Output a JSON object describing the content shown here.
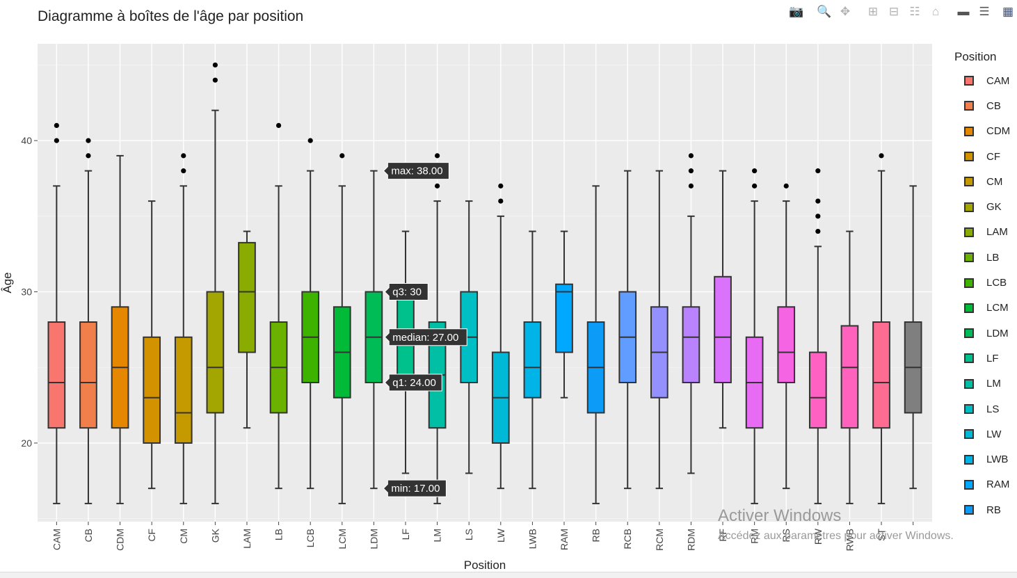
{
  "title": "Diagramme à boîtes de l'âge par position",
  "modebar": {
    "icons": [
      "camera-icon",
      "zoom-icon",
      "pan-icon",
      "zoom-in-icon",
      "zoom-out-icon",
      "autoscale-icon",
      "reset-axes-icon",
      "toggle-spike-icon",
      "compare-hover-icon",
      "plotly-logo-icon"
    ]
  },
  "watermark": {
    "line1": "Activer Windows",
    "line2": "Accédez aux paramètres pour activer Windows."
  },
  "legend": {
    "title": "Position",
    "items": [
      {
        "label": "CAM",
        "color": "#F8766D"
      },
      {
        "label": "CB",
        "color": "#F07F4C"
      },
      {
        "label": "CDM",
        "color": "#E58700"
      },
      {
        "label": "CF",
        "color": "#D39200"
      },
      {
        "label": "CM",
        "color": "#C49A00"
      },
      {
        "label": "GK",
        "color": "#A3A500"
      },
      {
        "label": "LAM",
        "color": "#8AAB00"
      },
      {
        "label": "LB",
        "color": "#6BB100"
      },
      {
        "label": "LCB",
        "color": "#3DB300"
      },
      {
        "label": "LCM",
        "color": "#00BA38"
      },
      {
        "label": "LDM",
        "color": "#00BC56"
      },
      {
        "label": "LF",
        "color": "#00C08B"
      },
      {
        "label": "LM",
        "color": "#00BFA4"
      },
      {
        "label": "LS",
        "color": "#00BFC4"
      },
      {
        "label": "LW",
        "color": "#00B9D7"
      },
      {
        "label": "LWB",
        "color": "#00B4E8"
      },
      {
        "label": "RAM",
        "color": "#00A9FF"
      },
      {
        "label": "RB",
        "color": "#0D9BF8"
      }
    ]
  },
  "hover": {
    "max": "max: 38.00",
    "q3": "q3: 30",
    "median": "median: 27.00",
    "q1": "q1: 24.00",
    "min": "min: 17.00"
  },
  "chart_data": {
    "type": "box",
    "title": "Diagramme à boîtes de l'âge par position",
    "xlabel": "Position",
    "ylabel": "Âge",
    "ylim": [
      14.8,
      46.4
    ],
    "yticks": [
      20,
      30,
      40
    ],
    "grid": true,
    "legend_position": "right",
    "series": [
      {
        "name": "CAM",
        "color": "#F8766D",
        "min": 16,
        "q1": 21,
        "median": 24,
        "q3": 28,
        "max": 37,
        "outliers": [
          40,
          41
        ]
      },
      {
        "name": "CB",
        "color": "#F07F4C",
        "min": 16,
        "q1": 21,
        "median": 24,
        "q3": 28,
        "max": 38,
        "outliers": [
          39,
          40
        ]
      },
      {
        "name": "CDM",
        "color": "#E58700",
        "min": 16,
        "q1": 21,
        "median": 25,
        "q3": 29,
        "max": 39,
        "outliers": []
      },
      {
        "name": "CF",
        "color": "#D39200",
        "min": 17,
        "q1": 20,
        "median": 23,
        "q3": 27,
        "max": 36,
        "outliers": []
      },
      {
        "name": "CM",
        "color": "#C49A00",
        "min": 16,
        "q1": 20,
        "median": 22,
        "q3": 27,
        "max": 37,
        "outliers": [
          38,
          39
        ]
      },
      {
        "name": "GK",
        "color": "#A3A500",
        "min": 16,
        "q1": 22,
        "median": 25,
        "q3": 30,
        "max": 42,
        "outliers": [
          44,
          45
        ]
      },
      {
        "name": "LAM",
        "color": "#8AAB00",
        "min": 21,
        "q1": 26,
        "median": 30,
        "q3": 33.25,
        "max": 34,
        "outliers": []
      },
      {
        "name": "LB",
        "color": "#6BB100",
        "min": 17,
        "q1": 22,
        "median": 25,
        "q3": 28,
        "max": 37,
        "outliers": [
          41
        ]
      },
      {
        "name": "LCB",
        "color": "#3DB300",
        "min": 17,
        "q1": 24,
        "median": 27,
        "q3": 30,
        "max": 38,
        "outliers": [
          40
        ]
      },
      {
        "name": "LCM",
        "color": "#00BA38",
        "min": 16,
        "q1": 23,
        "median": 26,
        "q3": 29,
        "max": 37,
        "outliers": [
          39
        ]
      },
      {
        "name": "LDM",
        "color": "#00BC56",
        "min": 17,
        "q1": 24,
        "median": 27,
        "q3": 30,
        "max": 38,
        "outliers": []
      },
      {
        "name": "LF",
        "color": "#00C08B",
        "min": 18,
        "q1": 24.5,
        "median": 27,
        "q3": 30,
        "max": 34,
        "outliers": []
      },
      {
        "name": "LM",
        "color": "#00BFA4",
        "min": 16,
        "q1": 21,
        "median": 24.5,
        "q3": 28,
        "max": 36,
        "outliers": [
          37,
          39
        ]
      },
      {
        "name": "LS",
        "color": "#00BFC4",
        "min": 18,
        "q1": 24,
        "median": 27,
        "q3": 30,
        "max": 36,
        "outliers": []
      },
      {
        "name": "LW",
        "color": "#00B9D7",
        "min": 17,
        "q1": 20,
        "median": 23,
        "q3": 26,
        "max": 35,
        "outliers": [
          36,
          37
        ]
      },
      {
        "name": "LWB",
        "color": "#00B4E8",
        "min": 17,
        "q1": 23,
        "median": 25,
        "q3": 28,
        "max": 34,
        "outliers": []
      },
      {
        "name": "RAM",
        "color": "#00A9FF",
        "min": 23,
        "q1": 26,
        "median": 30,
        "q3": 30.5,
        "max": 34,
        "outliers": []
      },
      {
        "name": "RB",
        "color": "#0D9BF8",
        "min": 16,
        "q1": 22,
        "median": 25,
        "q3": 28,
        "max": 37,
        "outliers": []
      },
      {
        "name": "RCB",
        "color": "#619CFF",
        "min": 17,
        "q1": 24,
        "median": 27,
        "q3": 30,
        "max": 38,
        "outliers": []
      },
      {
        "name": "RCM",
        "color": "#9590FF",
        "min": 17,
        "q1": 23,
        "median": 26,
        "q3": 29,
        "max": 38,
        "outliers": []
      },
      {
        "name": "RDM",
        "color": "#B983FF",
        "min": 18,
        "q1": 24,
        "median": 27,
        "q3": 29,
        "max": 35,
        "outliers": [
          37,
          38,
          39
        ]
      },
      {
        "name": "RF",
        "color": "#DB72FB",
        "min": 21,
        "q1": 24,
        "median": 27,
        "q3": 31,
        "max": 38,
        "outliers": []
      },
      {
        "name": "RM",
        "color": "#E76BF3",
        "min": 16,
        "q1": 21,
        "median": 24,
        "q3": 27,
        "max": 36,
        "outliers": [
          37,
          38
        ]
      },
      {
        "name": "RS",
        "color": "#F564E3",
        "min": 17,
        "q1": 24,
        "median": 26,
        "q3": 29,
        "max": 36,
        "outliers": [
          37
        ]
      },
      {
        "name": "RW",
        "color": "#FF61C3",
        "min": 16,
        "q1": 21,
        "median": 23,
        "q3": 26,
        "max": 33,
        "outliers": [
          34,
          35,
          36,
          38
        ]
      },
      {
        "name": "RWB",
        "color": "#FF62BC",
        "min": 16,
        "q1": 21,
        "median": 25,
        "q3": 27.75,
        "max": 34,
        "outliers": []
      },
      {
        "name": "ST",
        "color": "#FF6C91",
        "min": 16,
        "q1": 21,
        "median": 24,
        "q3": 28,
        "max": 38,
        "outliers": [
          39
        ]
      },
      {
        "name": "",
        "color": "#7F7F7F",
        "min": 17,
        "q1": 22,
        "median": 25,
        "q3": 28,
        "max": 37,
        "outliers": []
      }
    ],
    "categories": [
      "CAM",
      "CB",
      "CDM",
      "CF",
      "CM",
      "GK",
      "LAM",
      "LB",
      "LCB",
      "LCM",
      "LDM",
      "LF",
      "LM",
      "LS",
      "LW",
      "LWB",
      "RAM",
      "RB",
      "RCB",
      "RCM",
      "RDM",
      "RF",
      "RM",
      "RS",
      "RW",
      "RWB",
      "ST",
      ""
    ]
  }
}
